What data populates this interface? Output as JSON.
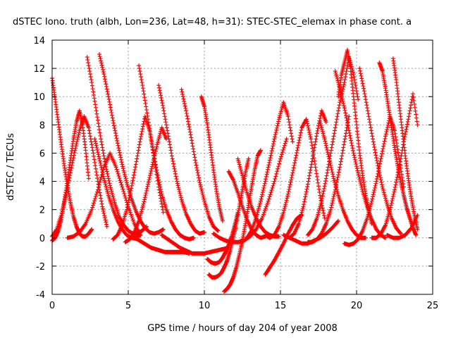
{
  "chart_data": {
    "type": "scatter",
    "title": "dSTEC Iono. truth (albh, Lon=236, Lat=48, h=31): STEC-STEC_elemax in phase cont. a",
    "xlabel": "GPS time / hours of day 204 of year 2008",
    "ylabel": "dSTEC  / TECUs",
    "xlim": [
      0,
      25
    ],
    "ylim": [
      -4,
      14
    ],
    "xticks": [
      "0",
      "5",
      "10",
      "15",
      "20",
      "25"
    ],
    "yticks": [
      "-4",
      "-2",
      "0",
      "2",
      "4",
      "6",
      "8",
      "10",
      "12",
      "14"
    ],
    "grid": true,
    "marker": "plus",
    "marker_color": "#ff0000",
    "series": [
      {
        "x": [
          0.0,
          0.2,
          0.4,
          0.6,
          0.8,
          1.0,
          1.2,
          1.4,
          1.6,
          1.8,
          2.0,
          2.2,
          2.4,
          2.6
        ],
        "y": [
          11.3,
          9.8,
          8.2,
          6.6,
          5.1,
          3.7,
          2.5,
          1.5,
          0.8,
          0.3,
          0.1,
          0.1,
          0.3,
          0.6
        ]
      },
      {
        "x": [
          0.0,
          0.2,
          0.4,
          0.6,
          0.8,
          1.0,
          1.2,
          1.4,
          1.6,
          1.8,
          2.0,
          2.2,
          2.4
        ],
        "y": [
          -0.2,
          0.0,
          0.5,
          1.3,
          2.6,
          4.0,
          5.5,
          7.0,
          8.2,
          9.0,
          8.0,
          6.2,
          4.2
        ]
      },
      {
        "x": [
          0.0,
          0.3,
          0.6,
          0.9,
          1.2,
          1.5,
          1.8,
          2.1,
          2.4,
          2.7,
          3.0,
          3.3,
          3.6
        ],
        "y": [
          0.1,
          0.6,
          1.6,
          3.0,
          4.6,
          6.2,
          7.6,
          8.6,
          7.8,
          6.0,
          4.0,
          2.2,
          0.8
        ]
      },
      {
        "x": [
          2.3,
          2.6,
          2.9,
          3.2,
          3.5,
          3.8,
          4.1,
          4.4,
          4.7,
          5.0,
          5.3,
          5.6,
          5.9,
          6.2
        ],
        "y": [
          12.8,
          11.0,
          9.0,
          7.0,
          5.2,
          3.7,
          2.5,
          1.5,
          0.9,
          0.5,
          0.3,
          0.3,
          0.5,
          0.8
        ]
      },
      {
        "x": [
          3.1,
          3.4,
          3.7,
          4.0,
          4.3,
          4.6,
          4.9,
          5.2,
          5.5,
          5.8,
          6.1,
          6.4,
          6.7,
          7.0,
          7.3
        ],
        "y": [
          13.0,
          11.6,
          10.0,
          8.3,
          6.7,
          5.2,
          3.9,
          2.8,
          1.9,
          1.2,
          0.7,
          0.4,
          0.3,
          0.4,
          0.6
        ]
      },
      {
        "x": [
          2.8,
          3.1,
          3.4,
          3.7,
          4.0,
          4.3,
          4.6,
          4.9,
          5.2,
          5.5,
          5.8
        ],
        "y": [
          7.0,
          5.6,
          4.2,
          3.0,
          2.0,
          1.2,
          0.6,
          0.2,
          0.0,
          0.0,
          0.2
        ]
      },
      {
        "x": [
          1.0,
          1.4,
          1.8,
          2.2,
          2.6,
          3.0,
          3.4,
          3.8,
          4.2,
          4.6,
          5.0,
          5.4,
          5.8
        ],
        "y": [
          0.0,
          0.1,
          0.4,
          1.0,
          2.0,
          3.4,
          5.0,
          6.0,
          5.0,
          3.6,
          2.2,
          1.0,
          0.2
        ]
      },
      {
        "x": [
          4.0,
          4.3,
          4.6,
          4.9,
          5.2,
          5.5,
          5.8,
          6.1,
          6.4,
          6.7,
          7.0,
          7.3
        ],
        "y": [
          -0.1,
          0.2,
          0.9,
          2.0,
          3.5,
          5.2,
          7.0,
          8.6,
          7.6,
          5.6,
          3.6,
          1.8
        ]
      },
      {
        "x": [
          4.8,
          5.1,
          5.4,
          5.7,
          6.0,
          6.3,
          6.6,
          6.9,
          7.2,
          7.5
        ],
        "y": [
          -0.3,
          -0.1,
          0.4,
          1.2,
          2.4,
          3.8,
          5.2,
          6.6,
          7.8,
          7.0
        ]
      },
      {
        "x": [
          5.7,
          6.0,
          6.3,
          6.6,
          6.9,
          7.2,
          7.5,
          7.8,
          8.1,
          8.4,
          8.7,
          9.0,
          9.3
        ],
        "y": [
          12.2,
          10.4,
          8.4,
          6.4,
          4.6,
          3.1,
          2.0,
          1.2,
          0.6,
          0.2,
          0.0,
          -0.1,
          0.0
        ]
      },
      {
        "x": [
          5.3,
          5.6,
          5.9,
          6.2,
          6.5,
          6.8,
          7.1,
          7.4,
          7.7,
          8.0,
          8.3,
          8.6,
          9.0
        ],
        "y": [
          0.0,
          -0.1,
          -0.3,
          -0.5,
          -0.7,
          -0.8,
          -0.9,
          -1.0,
          -1.0,
          -1.0,
          -1.0,
          -1.0,
          -1.1
        ]
      },
      {
        "x": [
          7.0,
          7.3,
          7.6,
          7.9,
          8.2,
          8.5,
          8.8,
          9.1,
          9.4,
          9.7,
          10.0
        ],
        "y": [
          10.8,
          9.2,
          7.4,
          5.6,
          4.0,
          2.7,
          1.7,
          1.0,
          0.5,
          0.3,
          0.4
        ]
      },
      {
        "x": [
          8.5,
          8.8,
          9.1,
          9.4,
          9.7,
          10.0,
          10.3,
          10.6,
          10.9
        ],
        "y": [
          10.5,
          9.0,
          7.3,
          5.5,
          3.9,
          2.6,
          1.5,
          0.8,
          0.5
        ]
      },
      {
        "x": [
          9.8,
          10.0,
          10.2,
          10.4,
          10.6,
          10.8,
          11.0,
          11.2
        ],
        "y": [
          10.0,
          9.3,
          8.0,
          6.4,
          4.8,
          3.3,
          2.1,
          1.2
        ]
      },
      {
        "x": [
          7.2,
          7.6,
          8.0,
          8.4,
          8.8,
          9.2,
          9.6,
          10.0,
          10.4,
          10.8,
          11.2,
          11.6
        ],
        "y": [
          0.2,
          -0.1,
          -0.4,
          -0.7,
          -0.9,
          -1.1,
          -1.1,
          -1.1,
          -1.0,
          -0.9,
          -0.8,
          -0.7
        ]
      },
      {
        "x": [
          10.2,
          10.4,
          10.6,
          10.8,
          11.0,
          11.2,
          11.4,
          11.6,
          11.8,
          12.0,
          12.2
        ],
        "y": [
          -1.5,
          -1.7,
          -1.8,
          -1.8,
          -1.7,
          -1.4,
          -1.0,
          -0.5,
          0.1,
          0.9,
          1.8
        ]
      },
      {
        "x": [
          10.3,
          10.5,
          10.7,
          10.9,
          11.1,
          11.3,
          11.5,
          11.7,
          11.9,
          12.1,
          12.3,
          12.5,
          12.7,
          12.9
        ],
        "y": [
          -2.6,
          -2.8,
          -2.8,
          -2.7,
          -2.5,
          -2.1,
          -1.6,
          -0.9,
          0.0,
          1.0,
          2.2,
          3.4,
          4.6,
          5.6
        ]
      },
      {
        "x": [
          11.3,
          11.5,
          11.7,
          11.9,
          12.1,
          12.3,
          12.5,
          12.7,
          12.9,
          13.1,
          13.3,
          13.5,
          13.7
        ],
        "y": [
          -3.8,
          -3.6,
          -3.3,
          -2.8,
          -2.1,
          -1.2,
          -0.2,
          1.0,
          2.3,
          3.6,
          4.8,
          5.8,
          6.2
        ]
      },
      {
        "x": [
          11.6,
          11.9,
          12.2,
          12.5,
          12.8,
          13.1,
          13.4,
          13.7,
          14.0
        ],
        "y": [
          4.7,
          4.1,
          3.2,
          2.2,
          1.3,
          0.6,
          0.2,
          0.0,
          0.1
        ]
      },
      {
        "x": [
          12.2,
          12.5,
          12.8,
          13.1,
          13.4,
          13.7,
          14.0,
          14.3,
          14.6,
          14.9
        ],
        "y": [
          5.6,
          4.4,
          3.2,
          2.2,
          1.4,
          0.8,
          0.4,
          0.2,
          0.1,
          0.1
        ]
      },
      {
        "x": [
          10.6,
          11.0,
          11.4,
          11.8,
          12.2,
          12.6,
          13.0,
          13.4,
          13.8,
          14.2,
          14.6,
          15.0,
          15.4
        ],
        "y": [
          0.3,
          0.0,
          -0.2,
          -0.3,
          -0.3,
          -0.2,
          0.1,
          0.6,
          1.4,
          2.6,
          4.0,
          5.6,
          7.0
        ]
      },
      {
        "x": [
          14.0,
          14.3,
          14.6,
          14.9,
          15.2,
          15.5,
          15.8,
          16.1,
          16.4
        ],
        "y": [
          -2.6,
          -2.1,
          -1.6,
          -1.0,
          -0.4,
          0.3,
          0.9,
          1.4,
          1.6
        ]
      },
      {
        "x": [
          12.8,
          13.1,
          13.4,
          13.7,
          14.0,
          14.3,
          14.6,
          14.9,
          15.2,
          15.5,
          15.8
        ],
        "y": [
          0.0,
          0.5,
          1.4,
          2.6,
          4.0,
          5.5,
          7.0,
          8.4,
          9.6,
          8.6,
          6.8
        ]
      },
      {
        "x": [
          14.0,
          14.3,
          14.6,
          14.9,
          15.2,
          15.5,
          15.8,
          16.1,
          16.4,
          16.7,
          17.0,
          17.3,
          17.6,
          17.9
        ],
        "y": [
          0.2,
          0.0,
          0.2,
          0.8,
          1.8,
          3.1,
          4.6,
          6.2,
          7.8,
          8.4,
          7.0,
          5.0,
          3.0,
          1.4
        ]
      },
      {
        "x": [
          15.6,
          15.9,
          16.2,
          16.5,
          16.8,
          17.1,
          17.4,
          17.7,
          18.0
        ],
        "y": [
          0.0,
          0.3,
          1.0,
          2.2,
          3.8,
          5.6,
          7.4,
          9.0,
          8.2
        ]
      },
      {
        "x": [
          16.8,
          17.1,
          17.4,
          17.7,
          18.0,
          18.3,
          18.6,
          18.9,
          19.2,
          19.5
        ],
        "y": [
          -0.3,
          -0.3,
          -0.1,
          0.3,
          1.0,
          2.0,
          3.4,
          5.0,
          6.8,
          8.6
        ]
      },
      {
        "x": [
          17.6,
          17.9,
          18.2,
          18.5,
          18.8,
          19.1,
          19.4,
          19.7,
          20.0,
          20.3,
          20.6
        ],
        "y": [
          8.2,
          7.0,
          5.6,
          4.2,
          3.0,
          2.0,
          1.2,
          0.6,
          0.2,
          0.0,
          0.0
        ]
      },
      {
        "x": [
          18.8,
          19.0,
          19.2,
          19.4,
          19.6,
          19.8,
          20.0,
          20.2,
          20.4,
          20.6,
          20.8,
          21.0
        ],
        "y": [
          10.0,
          11.5,
          12.4,
          13.3,
          12.0,
          10.0,
          8.0,
          6.0,
          4.4,
          3.0,
          1.9,
          1.0
        ]
      },
      {
        "x": [
          18.6,
          18.9,
          19.2,
          19.5,
          19.8,
          20.1,
          20.4,
          20.7,
          21.0,
          21.3,
          21.6,
          21.9
        ],
        "y": [
          11.8,
          10.6,
          9.2,
          7.6,
          6.0,
          4.6,
          3.3,
          2.2,
          1.3,
          0.6,
          0.2,
          0.0
        ]
      },
      {
        "x": [
          20.2,
          20.5,
          20.8,
          21.1,
          21.4,
          21.7,
          22.0,
          22.3,
          22.6,
          22.9
        ],
        "y": [
          12.0,
          10.4,
          8.6,
          6.8,
          5.1,
          3.6,
          2.4,
          1.4,
          0.7,
          0.3
        ]
      },
      {
        "x": [
          21.5,
          21.7,
          21.9,
          22.1,
          22.3,
          22.5,
          22.7,
          22.9,
          23.1,
          23.3,
          23.5,
          23.7,
          23.9
        ],
        "y": [
          12.4,
          11.8,
          10.6,
          9.2,
          7.8,
          6.4,
          5.1,
          4.0,
          3.0,
          2.1,
          1.4,
          0.7,
          0.2
        ]
      },
      {
        "x": [
          22.4,
          22.6,
          22.8,
          23.0,
          23.2,
          23.4,
          23.6,
          23.8,
          24.0
        ],
        "y": [
          12.7,
          11.2,
          9.4,
          7.6,
          5.8,
          4.2,
          2.8,
          1.6,
          0.6
        ]
      },
      {
        "x": [
          19.2,
          19.5,
          19.8,
          20.1,
          20.4,
          20.7,
          21.0,
          21.3,
          21.6,
          21.9,
          22.2,
          22.5,
          22.8,
          23.1
        ],
        "y": [
          -0.4,
          -0.5,
          -0.4,
          -0.1,
          0.5,
          1.4,
          2.6,
          4.0,
          5.6,
          7.2,
          8.6,
          7.6,
          5.6,
          3.6
        ]
      },
      {
        "x": [
          21.0,
          21.3,
          21.6,
          21.9,
          22.2,
          22.5,
          22.8,
          23.1,
          23.4,
          23.7,
          24.0
        ],
        "y": [
          0.0,
          0.0,
          0.3,
          0.9,
          2.0,
          3.4,
          5.0,
          6.8,
          8.4,
          10.2,
          8.0
        ]
      },
      {
        "x": [
          22.0,
          22.4,
          22.8,
          23.2,
          23.6,
          24.0
        ],
        "y": [
          0.2,
          0.0,
          0.0,
          0.2,
          0.7,
          1.6
        ]
      },
      {
        "x": [
          16.8,
          17.1,
          17.4,
          17.7,
          18.0,
          18.3,
          18.6,
          18.9,
          19.2,
          19.5,
          19.8,
          20.1
        ],
        "y": [
          0.2,
          0.6,
          1.4,
          2.6,
          4.2,
          6.0,
          7.8,
          9.6,
          11.0,
          12.8,
          11.6,
          9.8
        ]
      },
      {
        "x": [
          15.2,
          15.6,
          16.0,
          16.4,
          16.8,
          17.2,
          17.6,
          18.0,
          18.4,
          18.8
        ],
        "y": [
          0.2,
          0.0,
          -0.2,
          -0.4,
          -0.4,
          -0.2,
          0.0,
          0.3,
          0.7,
          1.2
        ]
      }
    ]
  }
}
